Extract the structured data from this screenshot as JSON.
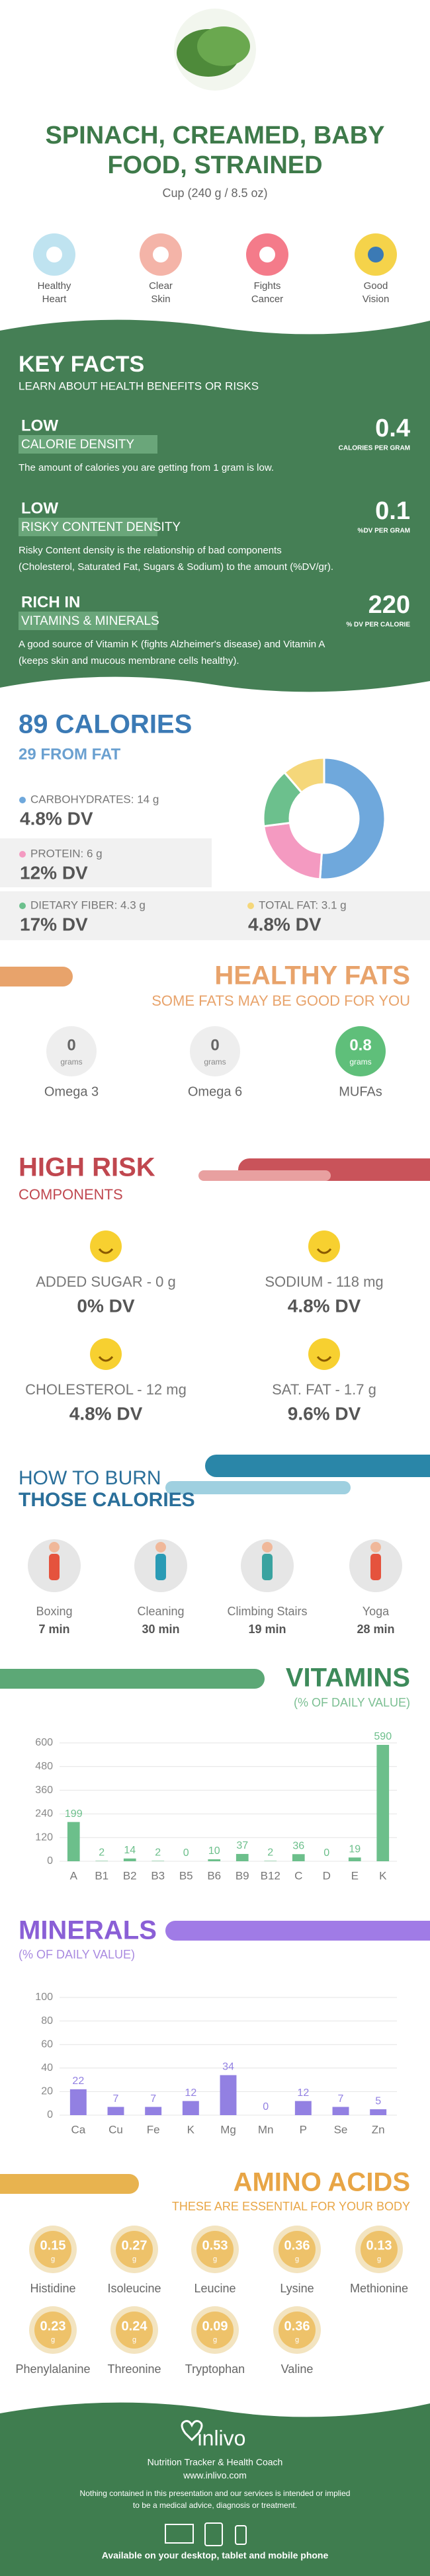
{
  "header": {
    "title": [
      "SPINACH, CREAMED, BABY",
      "FOOD, STRAINED"
    ],
    "serving": "Cup (240 g / 8.5 oz)",
    "benefits": [
      [
        "Healthy",
        "Heart"
      ],
      [
        "Clear",
        "Skin"
      ],
      [
        "Fights",
        "Cancer"
      ],
      [
        "Good",
        "Vision"
      ]
    ]
  },
  "key_facts": {
    "title": "KEY FACTS",
    "subtitle": "LEARN ABOUT HEALTH BENEFITS OR RISKS",
    "items": [
      {
        "level": "LOW",
        "name": "CALORIE DENSITY",
        "value": "0.4",
        "unit": "CALORIES PER GRAM",
        "desc": [
          "The amount of calories you are getting from 1 gram is low."
        ]
      },
      {
        "level": "LOW",
        "name": "RISKY CONTENT DENSITY",
        "value": "0.1",
        "unit": "%DV PER GRAM",
        "desc": [
          "Risky Content density is the relationship of bad components",
          "(Cholesterol, Saturated Fat, Sugars & Sodium) to the amount (%DV/gr)."
        ]
      },
      {
        "level": "RICH IN",
        "name": "VITAMINS & MINERALS",
        "value": "220",
        "unit": "% DV PER CALORIE",
        "desc": [
          "A good source of Vitamin K (fights Alzheimer's disease) and Vitamin A",
          "(keeps skin and mucous membrane cells healthy)."
        ]
      }
    ]
  },
  "calories": {
    "title": "89 CALORIES",
    "subtitle": "29 FROM FAT",
    "dv": [
      "4.8% DV",
      "12% DV",
      "17% DV",
      "4.8% DV"
    ]
  },
  "fats": {
    "title": "HEALTHY FATS",
    "subtitle": "SOME FATS MAY BE GOOD FOR YOU",
    "unit": "grams",
    "items": [
      {
        "value": "0",
        "name": "Omega 3"
      },
      {
        "value": "0",
        "name": "Omega 6"
      },
      {
        "value": "0.8",
        "name": "MUFAs"
      }
    ]
  },
  "risk": {
    "title": "HIGH RISK",
    "subtitle": "COMPONENTS",
    "items": [
      {
        "name": "ADDED SUGAR - 0 g",
        "dv": "0% DV"
      },
      {
        "name": "SODIUM - 118 mg",
        "dv": "4.8% DV"
      },
      {
        "name": "CHOLESTEROL - 12 mg",
        "dv": "4.8% DV"
      },
      {
        "name": "SAT. FAT - 1.7 g",
        "dv": "9.6% DV"
      }
    ]
  },
  "burn": {
    "title": [
      "HOW TO BURN",
      "THOSE CALORIES"
    ],
    "items": [
      {
        "name": "Boxing",
        "time": "7 min"
      },
      {
        "name": "Cleaning",
        "time": "30 min"
      },
      {
        "name": "Climbing Stairs",
        "time": "19 min"
      },
      {
        "name": "Yoga",
        "time": "28 min"
      }
    ]
  },
  "chart_data": [
    {
      "type": "pie",
      "categories": [
        "CARBOHYDRATES: 14 g",
        "PROTEIN: 6 g",
        "DIETARY FIBER: 4.3 g",
        "TOTAL FAT: 3.1 g"
      ],
      "values": [
        14,
        6,
        4.3,
        3.1
      ],
      "colors": [
        "#6fa8dc",
        "#f49ac1",
        "#6cc08d",
        "#f5d77a"
      ]
    },
    {
      "type": "bar",
      "title": "VITAMINS",
      "subtitle": "(% OF DAILY VALUE)",
      "categories": [
        "A",
        "B1",
        "B2",
        "B3",
        "B5",
        "B6",
        "B9",
        "B12",
        "C",
        "D",
        "E",
        "K"
      ],
      "values": [
        199,
        2,
        14,
        2,
        0,
        10,
        37,
        2,
        36,
        0,
        19,
        590
      ],
      "color": "#6cbf8b",
      "ylim": [
        0,
        600
      ],
      "yticks": [
        0,
        120,
        240,
        360,
        480,
        600
      ],
      "grid": true
    },
    {
      "type": "bar",
      "title": "MINERALS",
      "subtitle": "(% OF DAILY VALUE)",
      "categories": [
        "Ca",
        "Cu",
        "Fe",
        "K",
        "Mg",
        "Mn",
        "P",
        "Se",
        "Zn"
      ],
      "values": [
        22,
        7,
        7,
        12,
        34,
        0,
        12,
        7,
        5
      ],
      "color": "#9280e2",
      "ylim": [
        0,
        100
      ],
      "yticks": [
        0,
        20,
        40,
        60,
        80,
        100
      ],
      "grid": true
    }
  ],
  "amino": {
    "title": "AMINO ACIDS",
    "subtitle": "THESE ARE ESSENTIAL FOR YOUR BODY",
    "unit": "g",
    "items": [
      {
        "value": "0.15",
        "name": "Histidine"
      },
      {
        "value": "0.27",
        "name": "Isoleucine"
      },
      {
        "value": "0.53",
        "name": "Leucine"
      },
      {
        "value": "0.36",
        "name": "Lysine"
      },
      {
        "value": "0.13",
        "name": "Methionine"
      },
      {
        "value": "0.23",
        "name": "Phenylalanine"
      },
      {
        "value": "0.24",
        "name": "Threonine"
      },
      {
        "value": "0.09",
        "name": "Tryptophan"
      },
      {
        "value": "0.36",
        "name": "Valine"
      }
    ]
  },
  "footer": {
    "brand": "inlivo",
    "tagline": "Nutrition Tracker & Health Coach",
    "url": "www.inlivo.com",
    "disclaimer": [
      "Nothing contained in this presentation and our services is intended or implied",
      "to be a medical advice, diagnosis or treatment."
    ],
    "available": "Available on your desktop, tablet and mobile phone"
  }
}
